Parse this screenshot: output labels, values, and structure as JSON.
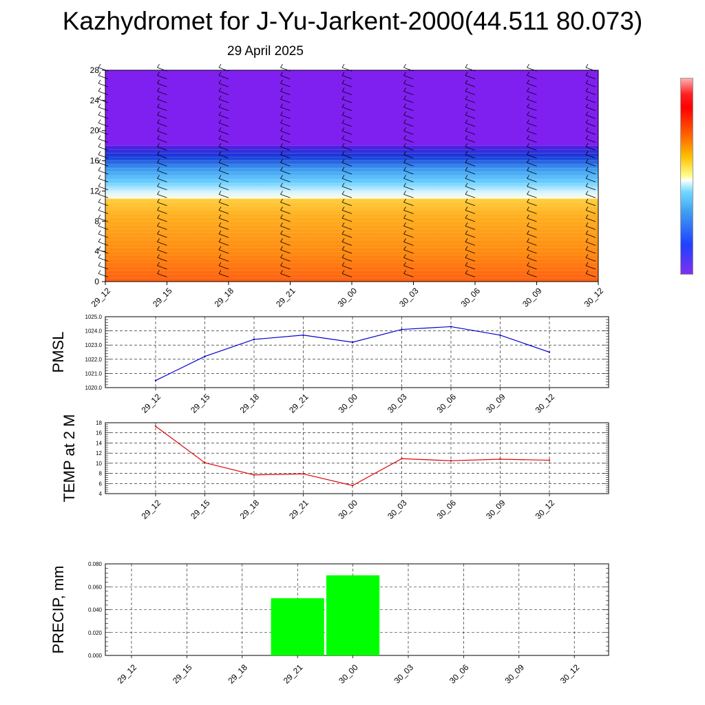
{
  "title": "Kazhydromet for J-Yu-Jarkent-2000(44.511 80.073)",
  "subtitle": "29 April 2025",
  "colors": {
    "pmsl_line": "#0000cc",
    "temp_line": "#e00000",
    "precip_bar": "#00ff00",
    "upper_fill": "#7f20f0",
    "lower_fill": "#ff8c00"
  },
  "chart_data": [
    {
      "type": "heatmap",
      "title": "",
      "xlabel": "",
      "ylabel": "",
      "x_ticks": [
        "29_12",
        "29_15",
        "29_18",
        "29_21",
        "30_00",
        "30_03",
        "30_06",
        "30_09",
        "30_12"
      ],
      "ylim": [
        0,
        28
      ],
      "y_ticks": [
        0,
        4,
        8,
        12,
        16,
        20,
        24,
        28
      ],
      "layers": [
        {
          "from": 0,
          "to": 11,
          "palette": "orange"
        },
        {
          "from": 11,
          "to": 18,
          "palette": "white-cyan-blue"
        },
        {
          "from": 18,
          "to": 28,
          "palette": "purple"
        }
      ],
      "wind_barbs": true,
      "colorbar": true
    },
    {
      "type": "line",
      "ylabel": "PMSL",
      "categories": [
        "29_12",
        "29_15",
        "29_18",
        "29_21",
        "30_00",
        "30_03",
        "30_06",
        "30_09",
        "30_12"
      ],
      "values": [
        1020.5,
        1022.2,
        1023.4,
        1023.7,
        1023.2,
        1024.1,
        1024.3,
        1023.7,
        1022.5
      ],
      "ylim": [
        1020.0,
        1025.0
      ],
      "y_ticks": [
        "1020.0",
        "1021.0",
        "1022.0",
        "1023.0",
        "1024.0",
        "1025.0"
      ],
      "grid": true
    },
    {
      "type": "line",
      "ylabel": "TEMP at 2 M",
      "categories": [
        "29_12",
        "29_15",
        "29_18",
        "29_21",
        "30_00",
        "30_03",
        "30_06",
        "30_09",
        "30_12"
      ],
      "values": [
        17.3,
        10.1,
        7.7,
        7.9,
        5.6,
        10.9,
        10.5,
        10.8,
        10.6
      ],
      "ylim": [
        4,
        18
      ],
      "y_ticks": [
        "4",
        "6",
        "8",
        "10",
        "12",
        "14",
        "16",
        "18"
      ],
      "grid": true
    },
    {
      "type": "bar",
      "ylabel": "PRECIP, mm",
      "categories": [
        "29_12",
        "29_15",
        "29_18",
        "29_21",
        "30_00",
        "30_03",
        "30_06",
        "30_09",
        "30_12"
      ],
      "values": [
        0,
        0,
        0,
        0.05,
        0.07,
        0,
        0,
        0,
        0
      ],
      "ylim": [
        0,
        0.08
      ],
      "y_ticks": [
        "0.000",
        "0.020",
        "0.040",
        "0.060",
        "0.080"
      ],
      "grid": true
    }
  ]
}
